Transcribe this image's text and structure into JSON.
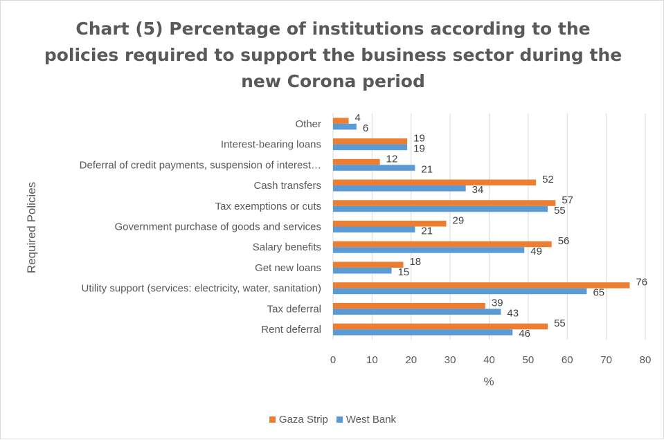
{
  "chart_data": {
    "type": "bar",
    "orientation": "horizontal",
    "title": "Chart (5) Percentage of institutions according to the policies required to support the business sector during the new Corona period",
    "xlabel": "%",
    "ylabel": "Required Policies",
    "xlim": [
      0,
      80
    ],
    "xticks": [
      "0",
      "10",
      "20",
      "30",
      "40",
      "50",
      "60",
      "70",
      "80"
    ],
    "grid": "vertical",
    "legend_position": "bottom",
    "categories": [
      "Other",
      "Interest-bearing loans",
      "Deferral of credit payments, suspension of interest…",
      "Cash transfers",
      "Tax exemptions or cuts",
      "Government purchase of goods and services",
      "Salary benefits",
      "Get new loans",
      "Utility support (services: electricity, water, sanitation)",
      "Tax deferral",
      "Rent deferral"
    ],
    "series": [
      {
        "name": "Gaza Strip",
        "color": "#ED7D31",
        "values": [
          4,
          19,
          12,
          52,
          57,
          29,
          56,
          18,
          76,
          39,
          55
        ]
      },
      {
        "name": "West Bank",
        "color": "#5B9BD5",
        "values": [
          6,
          19,
          21,
          34,
          55,
          21,
          49,
          15,
          65,
          43,
          46
        ]
      }
    ]
  }
}
